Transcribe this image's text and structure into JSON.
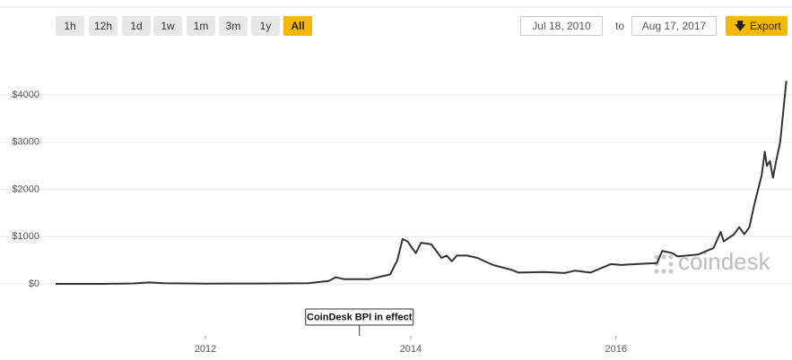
{
  "controls": {
    "ranges": [
      "1h",
      "12h",
      "1d",
      "1w",
      "1m",
      "3m",
      "1y",
      "All"
    ],
    "active": "All",
    "from": "Jul 18, 2010",
    "to_label": "to",
    "to": "Aug 17, 2017",
    "export": "Export"
  },
  "chart_data": {
    "type": "line",
    "color": "#333333",
    "grid": true,
    "watermark": "coindesk",
    "annotation": {
      "text": "CoinDesk BPI in effect",
      "x": 2013.5
    },
    "x": [
      2010.54,
      2011.0,
      2011.3,
      2011.45,
      2011.6,
      2012.0,
      2012.5,
      2013.0,
      2013.2,
      2013.27,
      2013.35,
      2013.6,
      2013.8,
      2013.87,
      2013.92,
      2013.97,
      2014.0,
      2014.05,
      2014.1,
      2014.2,
      2014.3,
      2014.35,
      2014.4,
      2014.45,
      2014.55,
      2014.65,
      2014.8,
      2014.98,
      2015.05,
      2015.3,
      2015.5,
      2015.6,
      2015.75,
      2015.95,
      2016.05,
      2016.2,
      2016.4,
      2016.45,
      2016.55,
      2016.6,
      2016.8,
      2016.95,
      2017.02,
      2017.05,
      2017.15,
      2017.2,
      2017.25,
      2017.3,
      2017.35,
      2017.42,
      2017.45,
      2017.47,
      2017.5,
      2017.53,
      2017.56,
      2017.6,
      2017.66
    ],
    "values": [
      0,
      1,
      10,
      30,
      15,
      5,
      8,
      13,
      60,
      140,
      100,
      100,
      200,
      500,
      950,
      900,
      800,
      650,
      870,
      840,
      550,
      600,
      480,
      600,
      600,
      550,
      400,
      300,
      240,
      250,
      230,
      280,
      240,
      420,
      400,
      420,
      440,
      700,
      650,
      580,
      620,
      760,
      1100,
      900,
      1050,
      1200,
      1050,
      1200,
      1700,
      2300,
      2800,
      2500,
      2600,
      2250,
      2600,
      3000,
      4300
    ],
    "xlim": [
      2010.54,
      2017.68
    ],
    "xticks": [
      2012,
      2014,
      2016
    ],
    "ylim": [
      -1100,
      5000
    ],
    "yticks": [
      {
        "value": 0,
        "label": "$0"
      },
      {
        "value": 1000,
        "label": "$1000"
      },
      {
        "value": 2000,
        "label": "$2000"
      },
      {
        "value": 3000,
        "label": "$3000"
      },
      {
        "value": 4000,
        "label": "$4000"
      }
    ]
  }
}
